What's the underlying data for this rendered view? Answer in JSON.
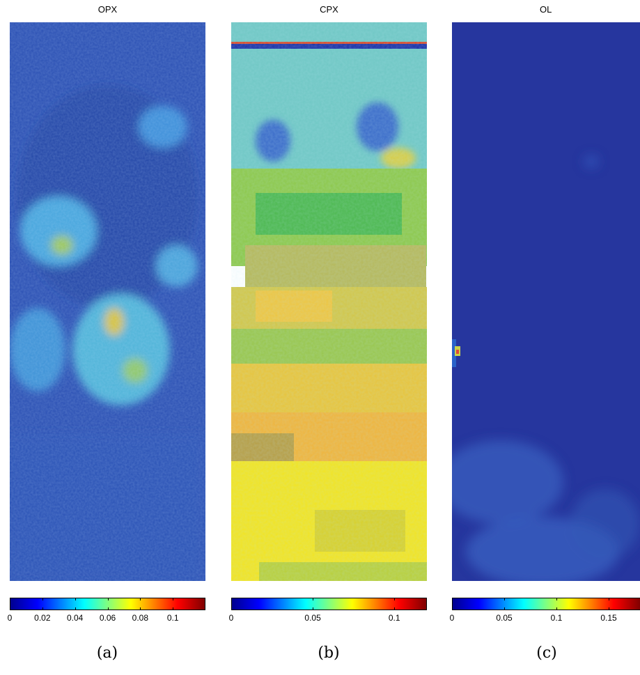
{
  "chart_data": [
    {
      "type": "heatmap",
      "title": "OPX",
      "caption": "(a)",
      "colormap": "jet",
      "clim": [
        0,
        0.12
      ],
      "colorbar_ticks": [
        "0",
        "0.02",
        "0.04",
        "0.06",
        "0.08",
        "0.1"
      ],
      "tick_values": [
        0,
        0.02,
        0.04,
        0.06,
        0.08,
        0.1
      ],
      "summary": {
        "background": 0.015,
        "max_spot": 0.1
      }
    },
    {
      "type": "heatmap",
      "title": "CPX",
      "caption": "(b)",
      "colormap": "jet",
      "clim": [
        0,
        0.12
      ],
      "colorbar_ticks": [
        "0",
        "0.05",
        "0.1"
      ],
      "tick_values": [
        0,
        0.05,
        0.1
      ],
      "summary": {
        "top_region": 0.05,
        "middle_region": 0.065,
        "bottom_region": 0.075
      }
    },
    {
      "type": "heatmap",
      "title": "OL",
      "caption": "(c)",
      "colormap": "jet",
      "clim": [
        0,
        0.18
      ],
      "colorbar_ticks": [
        "0",
        "0.05",
        "0.1",
        "0.15"
      ],
      "tick_values": [
        0,
        0.05,
        0.1,
        0.15
      ],
      "summary": {
        "background": 0.01,
        "lower_region": 0.02
      }
    }
  ]
}
